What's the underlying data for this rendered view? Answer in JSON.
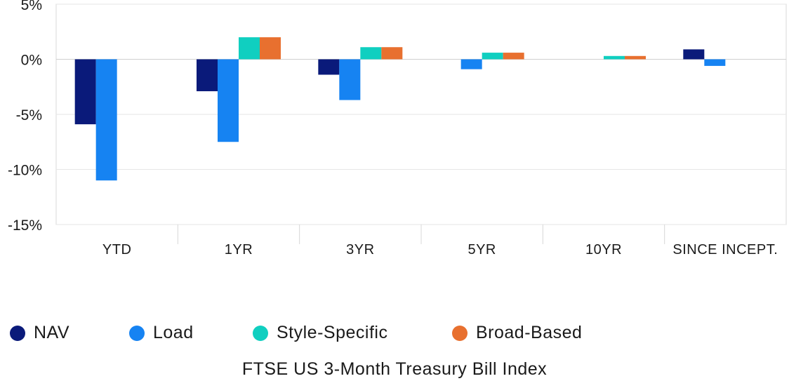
{
  "chart_data": {
    "type": "bar",
    "categories": [
      "YTD",
      "1YR",
      "3YR",
      "5YR",
      "10YR",
      "SINCE INCEPT."
    ],
    "series": [
      {
        "name": "NAV",
        "color": "#0a1a7a",
        "values": [
          -5.9,
          -2.9,
          -1.4,
          null,
          null,
          0.9
        ]
      },
      {
        "name": "Load",
        "color": "#1683f2",
        "values": [
          -11.0,
          -7.5,
          -3.7,
          -0.9,
          null,
          -0.6
        ]
      },
      {
        "name": "Style-Specific",
        "color": "#10cfc0",
        "values": [
          null,
          2.0,
          1.1,
          0.6,
          0.3,
          null
        ]
      },
      {
        "name": "Broad-Based",
        "color": "#e8702f",
        "values": [
          null,
          2.0,
          1.1,
          0.6,
          0.3,
          null
        ]
      }
    ],
    "yticks": [
      "5%",
      "0%",
      "-5%",
      "-10%",
      "-15%"
    ],
    "ylim": [
      -15,
      5
    ],
    "grid": true,
    "legend_position": "bottom-left",
    "footnote": "FTSE US 3-Month Treasury Bill Index"
  }
}
